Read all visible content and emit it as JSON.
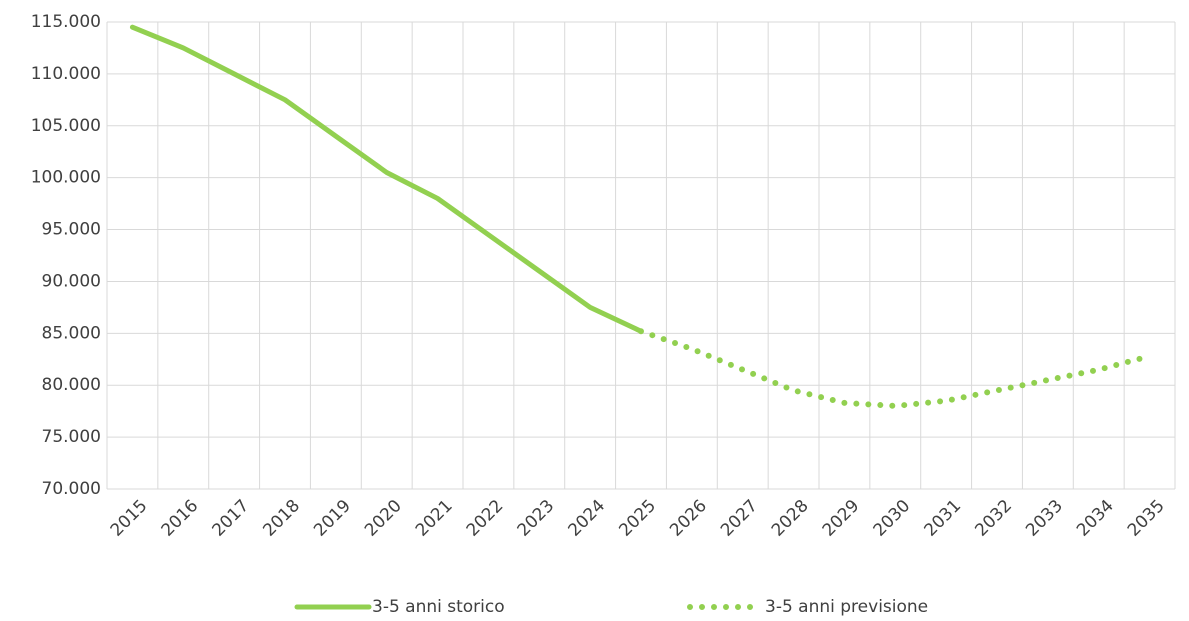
{
  "chart_data": {
    "type": "line",
    "categories": [
      "2015",
      "2016",
      "2017",
      "2018",
      "2019",
      "2020",
      "2021",
      "2022",
      "2023",
      "2024",
      "2025",
      "2026",
      "2027",
      "2028",
      "2029",
      "2030",
      "2031",
      "2032",
      "2033",
      "2034",
      "2035"
    ],
    "series": [
      {
        "name": "3-5 anni storico",
        "color": "#92d050",
        "style": "solid",
        "values": [
          114500,
          112500,
          110000,
          107500,
          104000,
          100500,
          98000,
          94500,
          91000,
          87500,
          85200,
          null,
          null,
          null,
          null,
          null,
          null,
          null,
          null,
          null,
          null
        ]
      },
      {
        "name": "3-5 anni previsione",
        "color": "#92d050",
        "style": "dotted",
        "values": [
          null,
          null,
          null,
          null,
          null,
          null,
          null,
          null,
          null,
          null,
          85200,
          83500,
          81500,
          79500,
          78300,
          78000,
          78500,
          79500,
          80500,
          81500,
          82800
        ]
      }
    ],
    "ylim": [
      70000,
      115000
    ],
    "yticks": [
      {
        "value": 70000,
        "label": "70.000"
      },
      {
        "value": 75000,
        "label": "75.000"
      },
      {
        "value": 80000,
        "label": "80.000"
      },
      {
        "value": 85000,
        "label": "85.000"
      },
      {
        "value": 90000,
        "label": "90.000"
      },
      {
        "value": 95000,
        "label": "95.000"
      },
      {
        "value": 100000,
        "label": "100.000"
      },
      {
        "value": 105000,
        "label": "105.000"
      },
      {
        "value": 110000,
        "label": "110.000"
      },
      {
        "value": 115000,
        "label": "115.000"
      }
    ],
    "grid": true,
    "legend": "bottom"
  }
}
